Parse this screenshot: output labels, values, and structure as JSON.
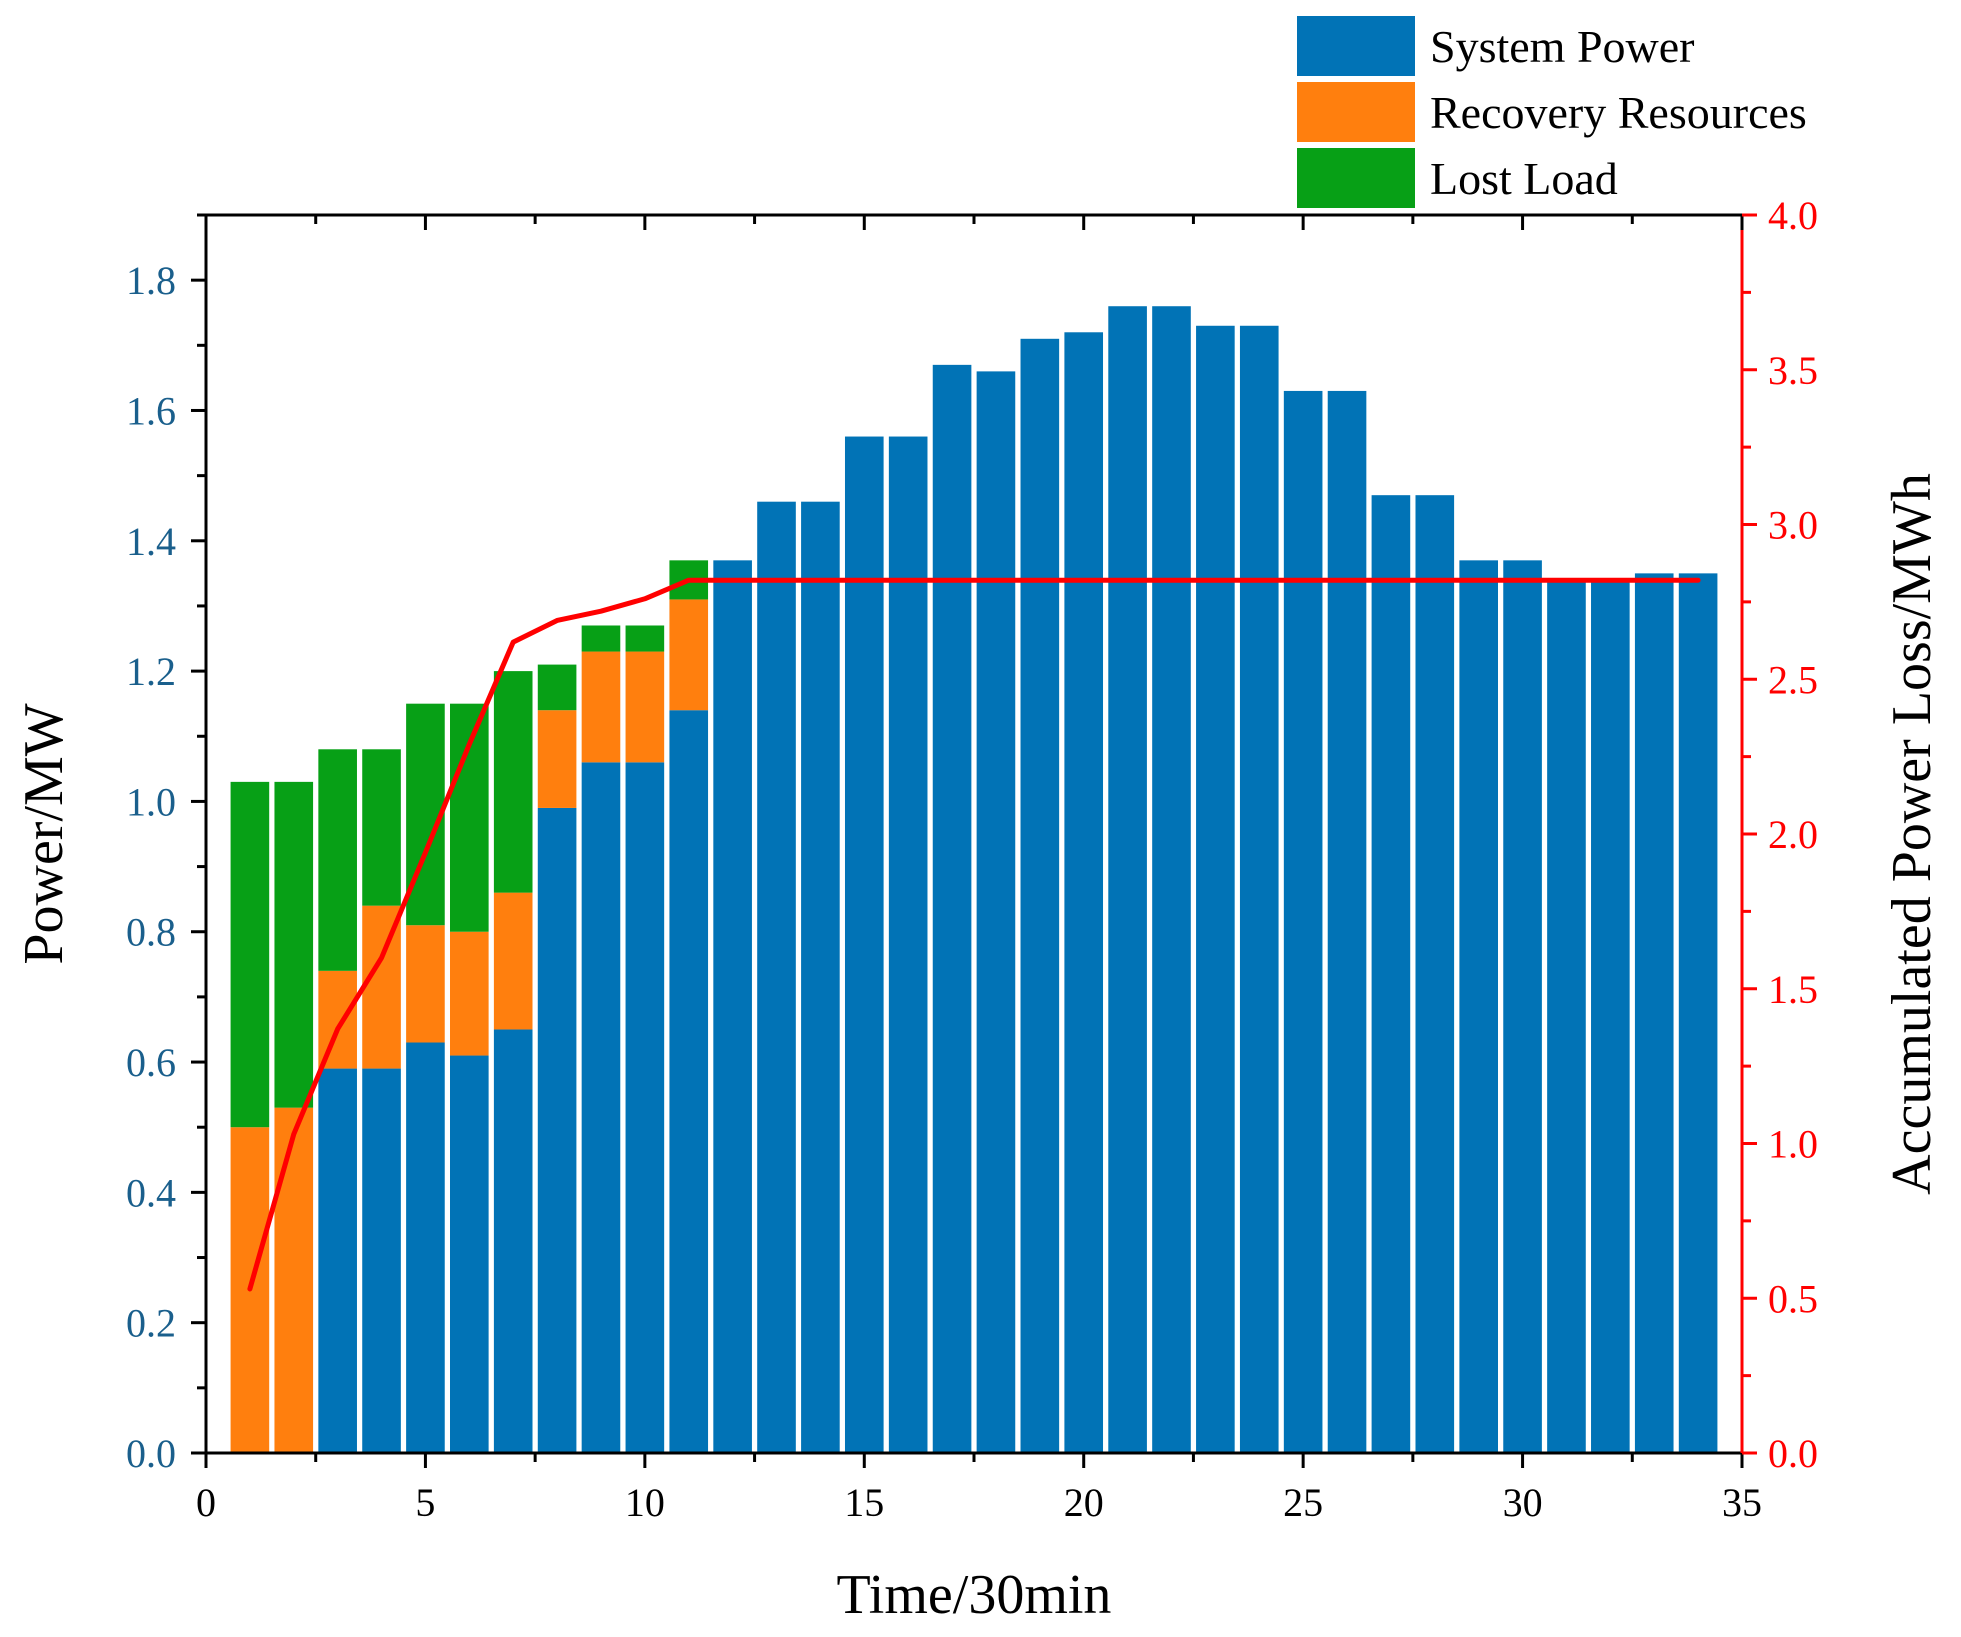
{
  "chart_data": {
    "type": "bar",
    "stacked": true,
    "xlabel": "Time/30min",
    "ylabel": "Power/MW",
    "y2label": "Accumulated Power Loss/MWh",
    "xlim": [
      0,
      35
    ],
    "ylim": [
      0,
      1.9
    ],
    "y2lim": [
      0,
      4.0
    ],
    "xticks": [
      "0",
      "5",
      "10",
      "15",
      "20",
      "25",
      "30",
      "35"
    ],
    "yticks": [
      "0.0",
      "0.2",
      "0.4",
      "0.6",
      "0.8",
      "1.0",
      "1.2",
      "1.4",
      "1.6",
      "1.8"
    ],
    "y2ticks": [
      "0.0",
      "0.5",
      "1.0",
      "1.5",
      "2.0",
      "2.5",
      "3.0",
      "3.5",
      "4.0"
    ],
    "categories": [
      1,
      2,
      3,
      4,
      5,
      6,
      7,
      8,
      9,
      10,
      11,
      12,
      13,
      14,
      15,
      16,
      17,
      18,
      19,
      20,
      21,
      22,
      23,
      24,
      25,
      26,
      27,
      28,
      29,
      30,
      31,
      32,
      33,
      34
    ],
    "series": [
      {
        "name": "System Power",
        "color": "#0173b6",
        "values": [
          0,
          0,
          0.59,
          0.59,
          0.63,
          0.61,
          0.65,
          0.99,
          1.06,
          1.06,
          1.14,
          1.37,
          1.46,
          1.46,
          1.56,
          1.56,
          1.67,
          1.66,
          1.71,
          1.72,
          1.76,
          1.76,
          1.73,
          1.73,
          1.63,
          1.63,
          1.47,
          1.47,
          1.37,
          1.37,
          1.34,
          1.34,
          1.35,
          1.35
        ]
      },
      {
        "name": "Recovery Resources",
        "color": "#ff7f0e",
        "values": [
          0.5,
          0.53,
          0.15,
          0.25,
          0.18,
          0.19,
          0.21,
          0.15,
          0.17,
          0.17,
          0.17,
          0,
          0,
          0,
          0,
          0,
          0,
          0,
          0,
          0,
          0,
          0,
          0,
          0,
          0,
          0,
          0,
          0,
          0,
          0,
          0,
          0,
          0,
          0
        ]
      },
      {
        "name": "Lost Load",
        "color": "#07a016",
        "values": [
          0.53,
          0.5,
          0.34,
          0.24,
          0.34,
          0.35,
          0.34,
          0.07,
          0.04,
          0.04,
          0.06,
          0,
          0,
          0,
          0,
          0,
          0,
          0,
          0,
          0,
          0,
          0,
          0,
          0,
          0,
          0,
          0,
          0,
          0,
          0,
          0,
          0,
          0,
          0
        ]
      }
    ],
    "line": {
      "name": "Accumulated Power Loss",
      "axis": "right",
      "color": "#ff0000",
      "x": [
        1,
        2,
        3,
        4,
        5,
        6,
        7,
        8,
        9,
        10,
        11,
        12,
        13,
        14,
        15,
        16,
        17,
        18,
        19,
        20,
        21,
        22,
        23,
        24,
        25,
        26,
        27,
        28,
        29,
        30,
        31,
        32,
        33,
        34
      ],
      "values": [
        0.53,
        1.03,
        1.37,
        1.6,
        1.94,
        2.29,
        2.62,
        2.69,
        2.72,
        2.76,
        2.82,
        2.82,
        2.82,
        2.82,
        2.82,
        2.82,
        2.82,
        2.82,
        2.82,
        2.82,
        2.82,
        2.82,
        2.82,
        2.82,
        2.82,
        2.82,
        2.82,
        2.82,
        2.82,
        2.82,
        2.82,
        2.82,
        2.82,
        2.82
      ]
    },
    "legend": {
      "position": "top-right",
      "items": [
        {
          "label": "System Power",
          "color": "#0173b6"
        },
        {
          "label": "Recovery Resources",
          "color": "#ff7f0e"
        },
        {
          "label": "Lost Load",
          "color": "#07a016"
        }
      ]
    },
    "colors": {
      "left_axis": "#1a5f8c",
      "right_axis": "#ff0000",
      "axis": "#000000"
    }
  }
}
